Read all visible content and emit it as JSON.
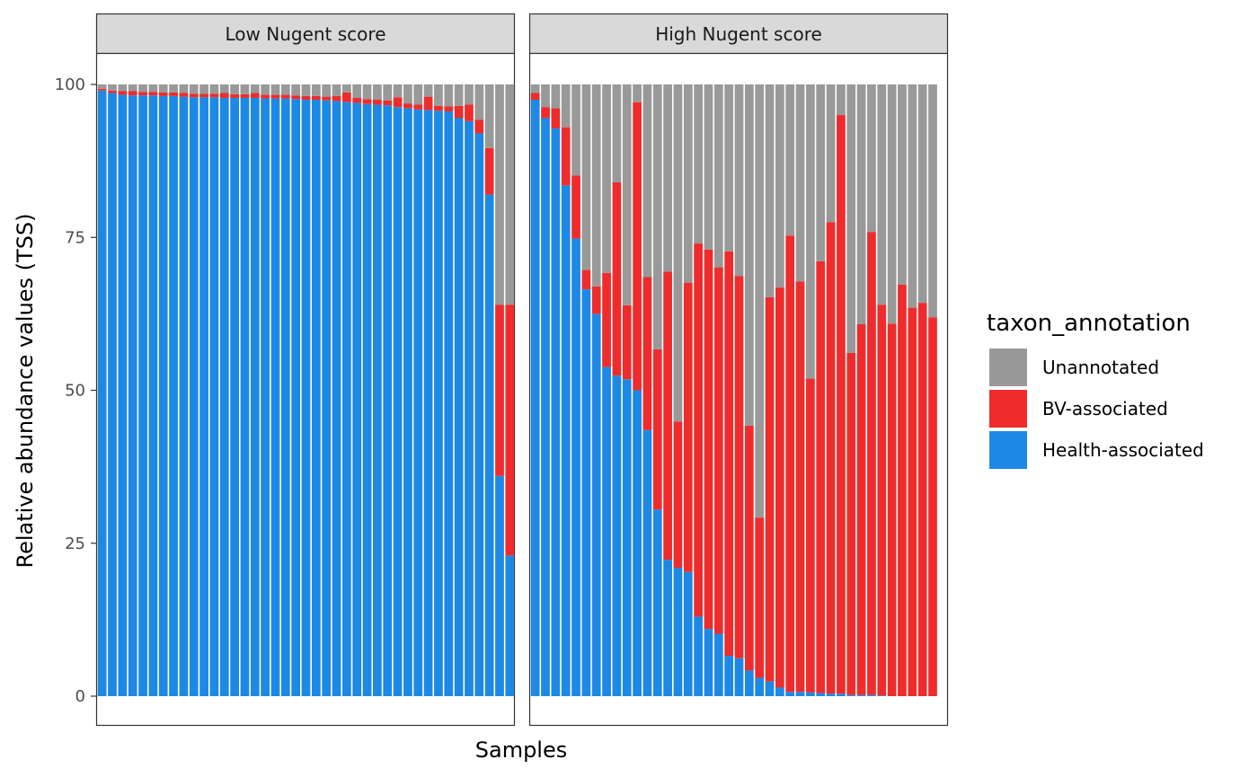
{
  "chart_data": {
    "type": "bar",
    "stacked": true,
    "xlabel": "Samples",
    "ylabel": "Relative abundance values (TSS)",
    "ylim": [
      0,
      100
    ],
    "yticks": [
      0,
      25,
      50,
      75,
      100
    ],
    "grid": false,
    "legend": {
      "title": "taxon_annotation",
      "placement": "right",
      "entries": [
        {
          "name": "Unannotated",
          "color": "#999999"
        },
        {
          "name": "BV-associated",
          "color": "#EE2C2C"
        },
        {
          "name": "Health-associated",
          "color": "#1E88E5"
        }
      ]
    },
    "panels": [
      {
        "title": "Low Nugent score",
        "health": [
          99.0,
          98.6,
          98.3,
          98.2,
          98.2,
          98.2,
          98.1,
          98.1,
          98.0,
          97.9,
          97.9,
          97.9,
          97.8,
          97.8,
          97.8,
          97.8,
          97.7,
          97.7,
          97.7,
          97.6,
          97.5,
          97.5,
          97.4,
          97.3,
          97.1,
          97.0,
          96.8,
          96.7,
          96.6,
          96.3,
          96.1,
          95.9,
          95.8,
          95.7,
          95.6,
          94.5,
          94.0,
          92.0,
          82.0,
          36.0,
          23.0
        ],
        "bv": [
          0.3,
          0.4,
          0.6,
          0.7,
          0.6,
          0.6,
          0.6,
          0.6,
          0.6,
          0.6,
          0.6,
          0.6,
          0.8,
          0.6,
          0.6,
          0.8,
          0.6,
          0.6,
          0.6,
          0.6,
          0.6,
          0.6,
          0.6,
          0.8,
          1.6,
          0.8,
          0.8,
          0.8,
          0.8,
          1.6,
          0.8,
          0.8,
          2.2,
          0.8,
          0.8,
          2.0,
          2.7,
          2.2,
          7.6,
          28.0,
          41.0
        ],
        "unannotated": [
          0.7,
          1.0,
          1.1,
          1.1,
          1.2,
          1.2,
          1.3,
          1.3,
          1.4,
          1.5,
          1.5,
          1.5,
          1.4,
          1.6,
          1.6,
          1.4,
          1.7,
          1.7,
          1.7,
          1.8,
          1.9,
          1.9,
          2.0,
          1.9,
          1.3,
          2.2,
          2.4,
          2.5,
          2.6,
          2.1,
          3.1,
          3.3,
          2.0,
          3.5,
          3.6,
          3.5,
          3.3,
          5.8,
          10.4,
          36.0,
          36.0
        ]
      },
      {
        "title": "High Nugent score",
        "health": [
          97.5,
          94.5,
          92.8,
          83.5,
          74.8,
          66.5,
          62.5,
          53.8,
          52.4,
          51.8,
          50.0,
          43.5,
          30.5,
          22.3,
          21.0,
          20.3,
          13.0,
          11.0,
          10.2,
          6.6,
          6.2,
          4.2,
          3.0,
          2.4,
          1.4,
          0.7,
          0.7,
          0.6,
          0.5,
          0.4,
          0.4,
          0.2,
          0.2,
          0.2,
          0.1,
          0.0,
          0.0,
          0.0,
          0.0,
          0.0,
          0.0
        ],
        "bv": [
          1.1,
          1.8,
          3.3,
          9.5,
          10.3,
          3.2,
          4.5,
          15.4,
          31.6,
          12.1,
          47.1,
          25.0,
          26.2,
          47.1,
          23.9,
          47.3,
          61.0,
          62.0,
          59.9,
          66.1,
          62.5,
          40.0,
          26.2,
          62.8,
          65.4,
          74.6,
          67.1,
          51.3,
          70.6,
          77.1,
          94.6,
          55.9,
          60.6,
          75.7,
          63.9,
          60.9,
          67.3,
          63.5,
          64.3,
          61.9,
          0.0
        ],
        "unannotated": [
          1.4,
          3.7,
          3.9,
          7.0,
          14.9,
          30.3,
          33.0,
          30.8,
          16.0,
          36.1,
          2.9,
          31.5,
          43.3,
          30.6,
          55.1,
          32.4,
          26.0,
          27.0,
          29.9,
          27.3,
          31.3,
          55.8,
          70.8,
          34.8,
          33.2,
          24.7,
          32.2,
          48.1,
          28.9,
          22.5,
          5.0,
          43.9,
          39.2,
          24.1,
          36.0,
          39.1,
          32.7,
          36.5,
          35.7,
          38.1,
          0.0
        ]
      }
    ]
  }
}
